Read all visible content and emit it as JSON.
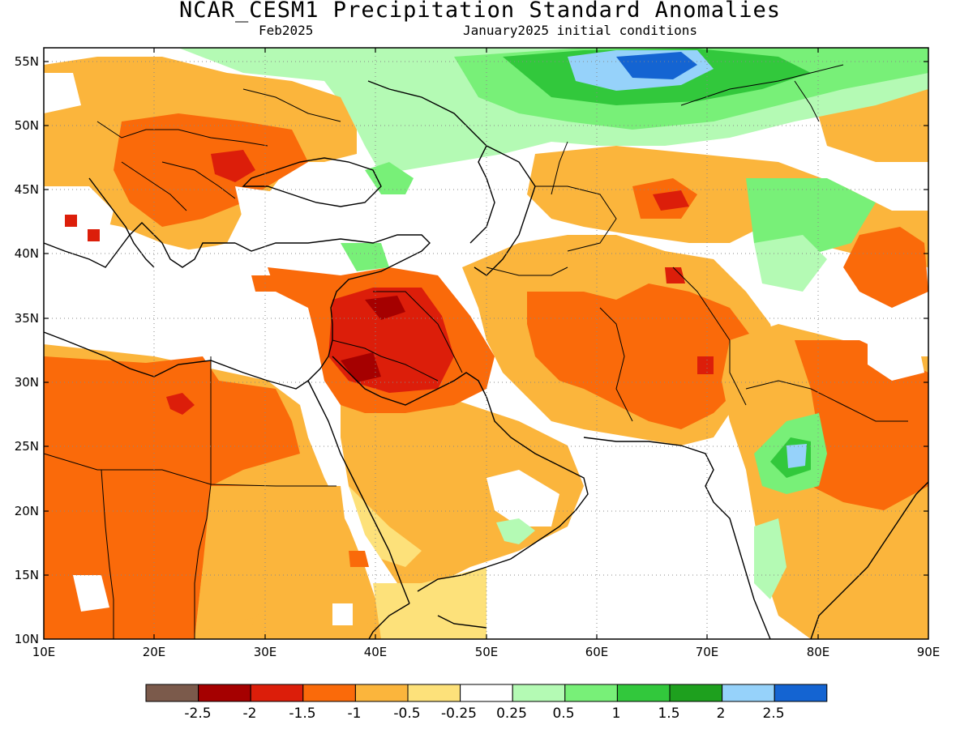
{
  "title": "NCAR_CESM1 Precipitation Standard Anomalies",
  "subtitle_left": "Feb2025",
  "subtitle_right": "January2025 initial conditions",
  "lat_labels": [
    "55N",
    "50N",
    "45N",
    "40N",
    "35N",
    "30N",
    "25N",
    "20N",
    "15N",
    "10N"
  ],
  "lon_labels": [
    "10E",
    "20E",
    "30E",
    "40E",
    "50E",
    "60E",
    "70E",
    "80E",
    "90E"
  ],
  "map_extent": {
    "lon": [
      10,
      90
    ],
    "lat": [
      10,
      56
    ]
  },
  "colorbar": {
    "colors": [
      "#7b5a4b",
      "#a50000",
      "#dc1e0a",
      "#fa6a0a",
      "#fbb53c",
      "#fde17a",
      "#ffffff",
      "#b4fab4",
      "#78f078",
      "#32c83c",
      "#1ea01e",
      "#96d2fa",
      "#1464d2"
    ],
    "labels": [
      "-2.5",
      "-2",
      "-1.5",
      "-1",
      "-0.5",
      "-0.25",
      "0.25",
      "0.5",
      "1",
      "1.5",
      "2",
      "2.5"
    ]
  },
  "colors": {
    "strong_dry": "#a50000",
    "dry": "#dc1e0a",
    "moderate_dry": "#fa6a0a",
    "weak_dry": "#fbb53c",
    "slight_dry": "#fde17a",
    "slight_wet": "#b4fab4",
    "wet": "#78f078",
    "more_wet": "#32c83c",
    "very_wet": "#96d2fa",
    "extreme_wet": "#1464d2",
    "coastline": "#000000"
  }
}
